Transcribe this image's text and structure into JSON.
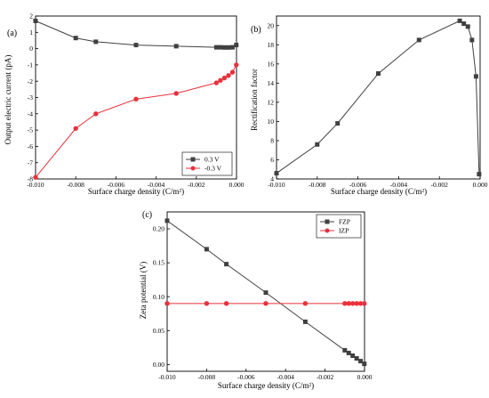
{
  "chart_data": [
    {
      "type": "line",
      "panel_label": "(a)",
      "xlabel": "Surface charge density (C/m²)",
      "ylabel": "Output electric current (pA)",
      "xlim": [
        -0.01,
        0.0
      ],
      "ylim": [
        -8,
        2
      ],
      "x_ticks": [
        -0.01,
        -0.008,
        -0.006,
        -0.004,
        -0.002,
        0.0
      ],
      "x_tick_labels": [
        "-0.010",
        "-0.008",
        "-0.006",
        "-0.004",
        "-0.002",
        "0.000"
      ],
      "y_ticks": [
        -8,
        -7,
        -6,
        -5,
        -4,
        -3,
        -2,
        -1,
        0,
        1,
        2
      ],
      "y_tick_labels": [
        "-8",
        "-7",
        "-6",
        "-5",
        "-4",
        "-3",
        "-2",
        "-1",
        "0",
        "1",
        "2"
      ],
      "legend_position": "bottom-right",
      "series": [
        {
          "name": "0.3 V",
          "color": "#404040",
          "marker": "square",
          "x": [
            -0.01,
            -0.008,
            -0.007,
            -0.005,
            -0.003,
            -0.001,
            -0.0008,
            -0.0006,
            -0.0004,
            -0.0002,
            -1e-05
          ],
          "y": [
            1.7,
            0.65,
            0.42,
            0.22,
            0.15,
            0.08,
            0.08,
            0.07,
            0.07,
            0.08,
            0.22
          ]
        },
        {
          "name": "-0.3 V",
          "color": "#e8323c",
          "marker": "circle",
          "x": [
            -0.01,
            -0.008,
            -0.007,
            -0.005,
            -0.003,
            -0.001,
            -0.0008,
            -0.0006,
            -0.0004,
            -0.0002,
            -1e-05
          ],
          "y": [
            -7.9,
            -4.9,
            -4.0,
            -3.1,
            -2.75,
            -2.1,
            -1.95,
            -1.8,
            -1.65,
            -1.45,
            -1.0
          ]
        }
      ]
    },
    {
      "type": "line",
      "panel_label": "(b)",
      "xlabel": "Surface charge density (C/m²)",
      "ylabel": "Rectification factor",
      "xlim": [
        -0.01,
        0.0
      ],
      "ylim": [
        4,
        21
      ],
      "x_ticks": [
        -0.01,
        -0.008,
        -0.006,
        -0.004,
        -0.002,
        0.0
      ],
      "x_tick_labels": [
        "-0.010",
        "-0.008",
        "-0.006",
        "-0.004",
        "-0.002",
        "0.000"
      ],
      "y_ticks": [
        4,
        6,
        8,
        10,
        12,
        14,
        16,
        18,
        20
      ],
      "y_tick_labels": [
        "4",
        "6",
        "8",
        "10",
        "12",
        "14",
        "16",
        "18",
        "20"
      ],
      "series": [
        {
          "color": "#404040",
          "marker": "square",
          "x": [
            -0.01,
            -0.008,
            -0.007,
            -0.005,
            -0.003,
            -0.001,
            -0.0008,
            -0.0006,
            -0.0004,
            -0.0002,
            -5e-05
          ],
          "y": [
            4.6,
            7.6,
            9.8,
            15.0,
            18.5,
            20.5,
            20.2,
            19.9,
            18.5,
            14.7,
            4.5
          ]
        }
      ]
    },
    {
      "type": "line",
      "panel_label": "(c)",
      "xlabel": "Surface charge density (C/m²)",
      "ylabel": "Zeta potential (V)",
      "xlim": [
        -0.01,
        0.0
      ],
      "ylim": [
        -0.01,
        0.225
      ],
      "x_ticks": [
        -0.01,
        -0.008,
        -0.006,
        -0.004,
        -0.002,
        0.0
      ],
      "x_tick_labels": [
        "-0.010",
        "-0.008",
        "-0.006",
        "-0.004",
        "-0.002",
        "0.000"
      ],
      "y_ticks": [
        0.0,
        0.05,
        0.1,
        0.15,
        0.2
      ],
      "y_tick_labels": [
        "0.00",
        "0.05",
        "0.10",
        "0.15",
        "0.20"
      ],
      "legend_position": "top-right",
      "series": [
        {
          "name": "FZP",
          "color": "#404040",
          "marker": "square",
          "x": [
            -0.01,
            -0.008,
            -0.007,
            -0.005,
            -0.003,
            -0.001,
            -0.0008,
            -0.0006,
            -0.0004,
            -0.0002,
            -1e-05
          ],
          "y": [
            0.212,
            0.17,
            0.148,
            0.106,
            0.063,
            0.021,
            0.017,
            0.013,
            0.009,
            0.005,
            0.001
          ]
        },
        {
          "name": "IZP",
          "color": "#e8323c",
          "marker": "circle",
          "x": [
            -0.01,
            -0.008,
            -0.007,
            -0.005,
            -0.003,
            -0.001,
            -0.0008,
            -0.0006,
            -0.0004,
            -0.0002,
            -1e-05
          ],
          "y": [
            0.09,
            0.09,
            0.09,
            0.09,
            0.09,
            0.09,
            0.09,
            0.09,
            0.09,
            0.09,
            0.09
          ]
        }
      ]
    }
  ]
}
